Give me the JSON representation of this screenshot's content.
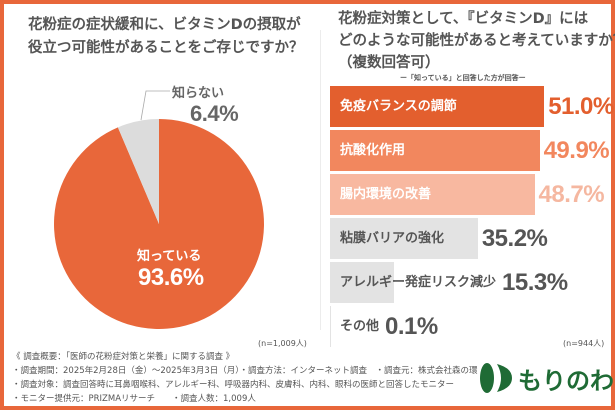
{
  "left": {
    "title_lines": [
      "花粉症の症状緩和に、ビタミンDの摂取が",
      "役立つ可能性があることをご存じですか？"
    ],
    "n": "(n=1,009人)"
  },
  "right": {
    "title_lines": [
      "花粉症対策として、『ビタミンD』には",
      "どのような可能性があると考えていますか？",
      "（複数回答可）"
    ],
    "subtitle": "ー「知っている」と回答した方が回答ー",
    "n": "(n=944人)"
  },
  "chart_data": [
    {
      "type": "pie",
      "title": "花粉症の症状緩和に、ビタミンDの摂取が役立つ可能性があることをご存じですか？",
      "slices": [
        {
          "label": "知っている",
          "value": 93.6,
          "display": "93.6%",
          "color": "#e8673a"
        },
        {
          "label": "知らない",
          "value": 6.4,
          "display": "6.4%",
          "color": "#dcdcdc"
        }
      ]
    },
    {
      "type": "bar",
      "orientation": "horizontal",
      "title": "花粉症対策として、『ビタミンD』にはどのような可能性があると考えていますか？（複数回答可）",
      "categories": [
        "免疫バランスの調節",
        "抗酸化作用",
        "腸内環境の改善",
        "粘膜バリアの強化",
        "アレルギー発症リスク減少",
        "その他"
      ],
      "values": [
        51.0,
        49.9,
        48.7,
        35.2,
        15.3,
        0.1
      ],
      "labels": [
        "51.0%",
        "49.9%",
        "48.7%",
        "35.2%",
        "15.3%",
        "0.1%"
      ],
      "bar_colors": [
        "#e35f2e",
        "#f2875e",
        "#f8b8a0",
        "#e3e3e3",
        "#e3e3e3",
        "#e3e3e3"
      ],
      "value_colors": [
        "#e35f2e",
        "#f2875e",
        "#f5b7a0",
        "#555555",
        "#555555",
        "#555555"
      ],
      "label_colors": [
        "#ffffff",
        "#ffffff",
        "#ffffff",
        "#555555",
        "#555555",
        "#555555"
      ]
    }
  ],
  "footer": {
    "lines": [
      "《 調査概要：「医師の花粉症対策と栄養」に関する調査 》",
      "・調査期間：2025年2月28日（金）〜2025年3月3日（月）・調査方法：インターネット調査　・調査元：株式会社森の環",
      "・調査対象：調査回答時に耳鼻咽喉科、アレルギー科、呼吸器内科、皮膚科、内科、眼科の医師と回答したモニター",
      "・モニター提供元：PRIZMAリサーチ　　・調査人数：1,009人"
    ],
    "logo_text": "もりのわ",
    "logo_color": "#1f6b35"
  }
}
